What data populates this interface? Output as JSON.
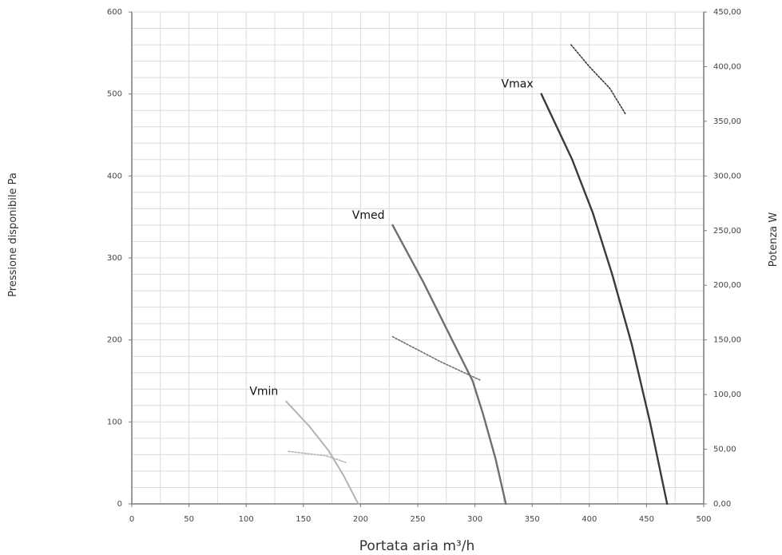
{
  "chart_data": {
    "type": "line",
    "xlabel": "Portata aria m³/h",
    "ylabel": "Pressione disponibile Pa",
    "y2label": "Potenza W",
    "xlim": [
      0,
      500
    ],
    "ylim": [
      0,
      600
    ],
    "y2lim": [
      0,
      450
    ],
    "xticks": [
      "0",
      "50",
      "100",
      "150",
      "200",
      "250",
      "300",
      "350",
      "400",
      "450",
      "500"
    ],
    "yticks": [
      "0",
      "100",
      "200",
      "300",
      "400",
      "500",
      "600"
    ],
    "y2ticks": [
      "0,00",
      "50,00",
      "100,00",
      "150,00",
      "200,00",
      "250,00",
      "300,00",
      "350,00",
      "400,00",
      "450,00"
    ],
    "grid": true,
    "colors": {
      "vmin": "#b3b3b3",
      "vmed": "#6f6f6f",
      "vmax": "#3a3a3a"
    },
    "series": [
      {
        "name": "Vmin",
        "axis": "pressure",
        "style": "solid",
        "color_key": "vmin",
        "x": [
          135,
          155,
          172,
          185,
          198
        ],
        "y": [
          125,
          95,
          65,
          35,
          0
        ]
      },
      {
        "name": "Vmed",
        "axis": "pressure",
        "style": "solid",
        "color_key": "vmed",
        "x": [
          228,
          255,
          280,
          298,
          307,
          318,
          327
        ],
        "y": [
          340,
          270,
          200,
          150,
          110,
          55,
          0
        ]
      },
      {
        "name": "Vmax",
        "axis": "pressure",
        "style": "solid",
        "color_key": "vmax",
        "x": [
          358,
          385,
          403,
          420,
          437,
          453,
          468
        ],
        "y": [
          500,
          420,
          355,
          280,
          195,
          100,
          0
        ]
      },
      {
        "axis": "power",
        "style": "dotted",
        "color_key": "vmin",
        "x": [
          137,
          170,
          187
        ],
        "y": [
          48,
          44,
          38
        ]
      },
      {
        "axis": "power",
        "style": "dotted",
        "color_key": "vmed",
        "x": [
          228,
          270,
          305
        ],
        "y": [
          153,
          130,
          113
        ]
      },
      {
        "axis": "power",
        "style": "dotted",
        "color_key": "vmax",
        "x": [
          384,
          400,
          418,
          432
        ],
        "y": [
          420,
          400,
          380,
          356
        ]
      }
    ],
    "labels": [
      {
        "text": "Vmin",
        "x": 135,
        "y": 125
      },
      {
        "text": "Vmed",
        "x": 228,
        "y": 340
      },
      {
        "text": "Vmax",
        "x": 358,
        "y": 500
      }
    ]
  }
}
